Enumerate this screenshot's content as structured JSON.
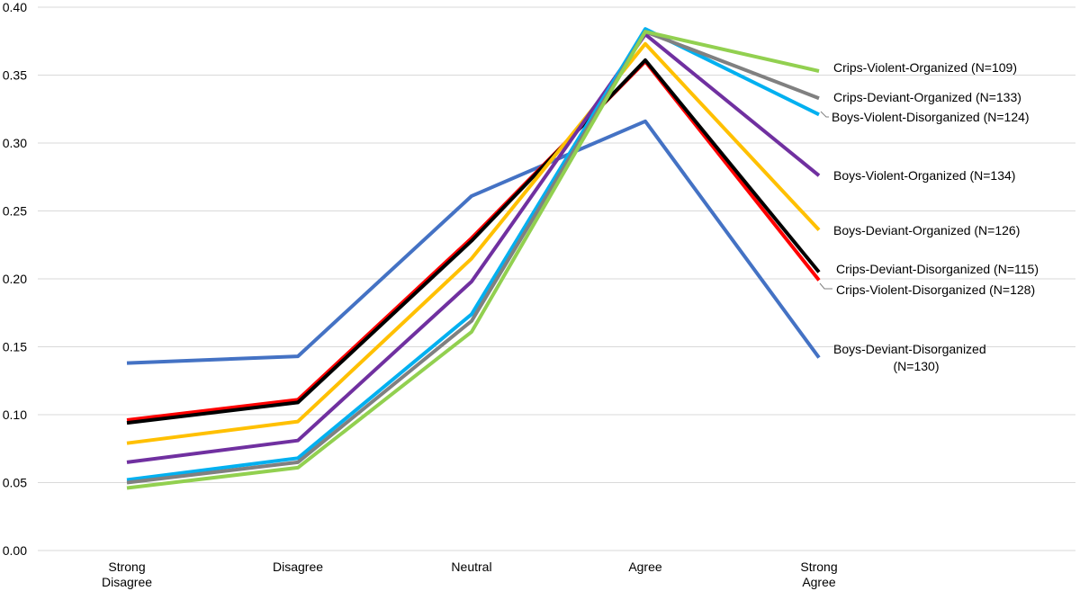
{
  "chart_data": {
    "type": "line",
    "categories": [
      "Strong Disagree",
      "Disagree",
      "Neutral",
      "Agree",
      "Strong Agree"
    ],
    "ylim": [
      0,
      0.4
    ],
    "yticks": [
      "0.00",
      "0.05",
      "0.10",
      "0.15",
      "0.20",
      "0.25",
      "0.30",
      "0.35",
      "0.40"
    ],
    "grid": true,
    "legend": "inline labels at right end of lines",
    "series": [
      {
        "name": "Boys-Deviant-Disorganized (N=130)",
        "color": "#4472c4",
        "values": [
          0.138,
          0.143,
          0.261,
          0.316,
          0.142
        ]
      },
      {
        "name": "Crips-Violent-Disorganized (N=128)",
        "color": "#ff0000",
        "values": [
          0.096,
          0.111,
          0.23,
          0.36,
          0.199
        ]
      },
      {
        "name": "Crips-Deviant-Disorganized (N=115)",
        "color": "#000000",
        "values": [
          0.094,
          0.109,
          0.228,
          0.361,
          0.205
        ]
      },
      {
        "name": "Boys-Deviant-Organized (N=126)",
        "color": "#ffc000",
        "values": [
          0.079,
          0.095,
          0.215,
          0.373,
          0.236
        ]
      },
      {
        "name": "Boys-Violent-Organized (N=134)",
        "color": "#7030a0",
        "values": [
          0.065,
          0.081,
          0.198,
          0.38,
          0.276
        ]
      },
      {
        "name": "Boys-Violent-Disorganized (N=124)",
        "color": "#00b0f0",
        "values": [
          0.052,
          0.068,
          0.174,
          0.384,
          0.321
        ]
      },
      {
        "name": "Crips-Deviant-Organized (N=133)",
        "color": "#808080",
        "values": [
          0.05,
          0.065,
          0.169,
          0.382,
          0.333
        ]
      },
      {
        "name": "Crips-Violent-Organized (N=109)",
        "color": "#92d050",
        "values": [
          0.046,
          0.061,
          0.161,
          0.382,
          0.353
        ]
      }
    ]
  }
}
